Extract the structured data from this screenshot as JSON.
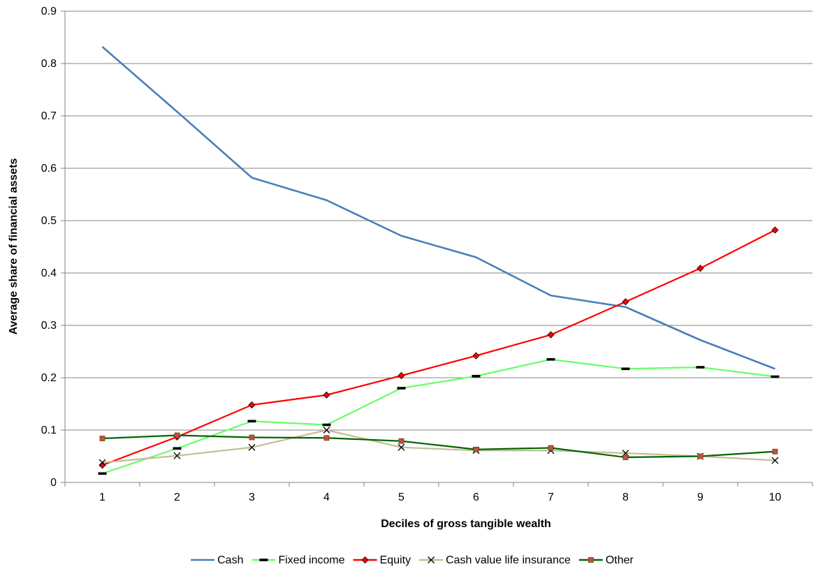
{
  "chart_data": {
    "type": "line",
    "title": "",
    "xlabel": "Deciles of gross tangible wealth",
    "ylabel": "Average share of financial assets",
    "categories": [
      "1",
      "2",
      "3",
      "4",
      "5",
      "6",
      "7",
      "8",
      "9",
      "10"
    ],
    "ylim": [
      0,
      0.9
    ],
    "yticks": [
      "0",
      "0.1",
      "0.2",
      "0.3",
      "0.4",
      "0.5",
      "0.6",
      "0.7",
      "0.8",
      "0.9"
    ],
    "grid": "horizontal",
    "legend_position": "bottom",
    "series": [
      {
        "name": "Cash",
        "color": "#4a7ebb",
        "marker": "none",
        "values": [
          0.832,
          0.708,
          0.582,
          0.539,
          0.471,
          0.43,
          0.357,
          0.335,
          0.272,
          0.217
        ]
      },
      {
        "name": "Fixed income",
        "color": "#66ff66",
        "marker": "dash",
        "values": [
          0.017,
          0.065,
          0.117,
          0.11,
          0.18,
          0.203,
          0.235,
          0.217,
          0.22,
          0.202
        ]
      },
      {
        "name": "Equity",
        "color": "#ff0000",
        "marker": "diamond",
        "values": [
          0.033,
          0.087,
          0.148,
          0.167,
          0.204,
          0.242,
          0.282,
          0.345,
          0.409,
          0.482
        ]
      },
      {
        "name": "Cash value life insurance",
        "color": "#c4bd97",
        "marker": "x",
        "values": [
          0.038,
          0.051,
          0.067,
          0.1,
          0.067,
          0.061,
          0.061,
          0.056,
          0.05,
          0.042
        ]
      },
      {
        "name": "Other",
        "color": "#006600",
        "marker": "square",
        "values": [
          0.084,
          0.09,
          0.086,
          0.085,
          0.079,
          0.063,
          0.066,
          0.048,
          0.05,
          0.059
        ]
      }
    ]
  }
}
